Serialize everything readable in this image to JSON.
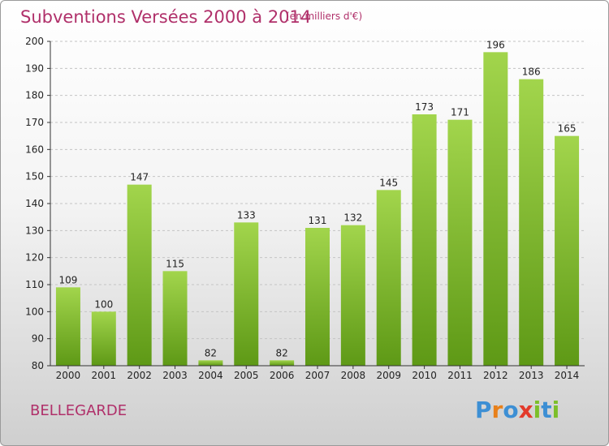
{
  "header": {
    "title": "Subventions Versées 2000 à 2014",
    "subtitle": "(en milliers d'€)"
  },
  "footer": {
    "commune": "BELLEGARDE",
    "logo_text": "Proxiti"
  },
  "colors": {
    "title": "#b0306a",
    "bar_top": "#9fd24a",
    "bar_bottom": "#5f9a17",
    "grid": "#c8c8c8",
    "axis_text": "#222222"
  },
  "chart_data": {
    "type": "bar",
    "title": "Subventions Versées 2000 à 2014",
    "subtitle": "(en milliers d'€)",
    "xlabel": "",
    "ylabel": "",
    "categories": [
      "2000",
      "2001",
      "2002",
      "2003",
      "2004",
      "2005",
      "2006",
      "2007",
      "2008",
      "2009",
      "2010",
      "2011",
      "2012",
      "2013",
      "2014"
    ],
    "values": [
      109,
      100,
      147,
      115,
      82,
      133,
      82,
      131,
      132,
      145,
      173,
      171,
      196,
      186,
      165
    ],
    "ylim": [
      80,
      200
    ],
    "yticks": [
      80,
      90,
      100,
      110,
      120,
      130,
      140,
      150,
      160,
      170,
      180,
      190,
      200
    ],
    "grid": true,
    "grid_style": "dashed horizontal",
    "data_labels": true,
    "legend": "none"
  }
}
